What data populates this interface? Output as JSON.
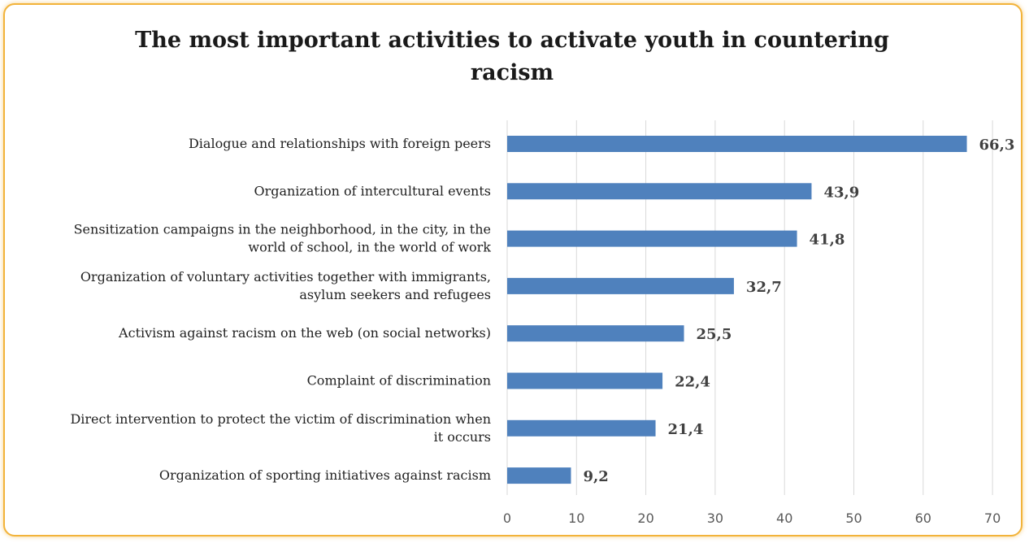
{
  "chart_data": {
    "type": "bar",
    "orientation": "horizontal",
    "title": "The most important activities to activate youth in countering racism",
    "categories": [
      [
        "Dialogue and relationships with foreign peers"
      ],
      [
        "Organization of intercultural events"
      ],
      [
        "Sensitization campaigns in the neighborhood, in the city, in the",
        "world of school, in the world of work"
      ],
      [
        "Organization of voluntary activities together with immigrants,",
        "asylum seekers and refugees"
      ],
      [
        "Activism against racism on the web (on social networks)"
      ],
      [
        "Complaint of discrimination"
      ],
      [
        "Direct intervention to protect the victim of discrimination when",
        "it occurs"
      ],
      [
        "Organization of sporting initiatives against racism"
      ]
    ],
    "values": [
      66.3,
      43.9,
      41.8,
      32.7,
      25.5,
      22.4,
      21.4,
      9.2
    ],
    "value_labels": [
      "66,3",
      "43,9",
      "41,8",
      "32,7",
      "25,5",
      "22,4",
      "21,4",
      "9,2"
    ],
    "xlim": [
      0,
      70
    ],
    "xticks": [
      "0",
      "10",
      "20",
      "30",
      "40",
      "50",
      "60",
      "70"
    ],
    "grid": true,
    "legend": "none",
    "bar_color": "#4f81bd",
    "grid_color": "#d9d9d9",
    "border_color": "#f2b33a"
  }
}
